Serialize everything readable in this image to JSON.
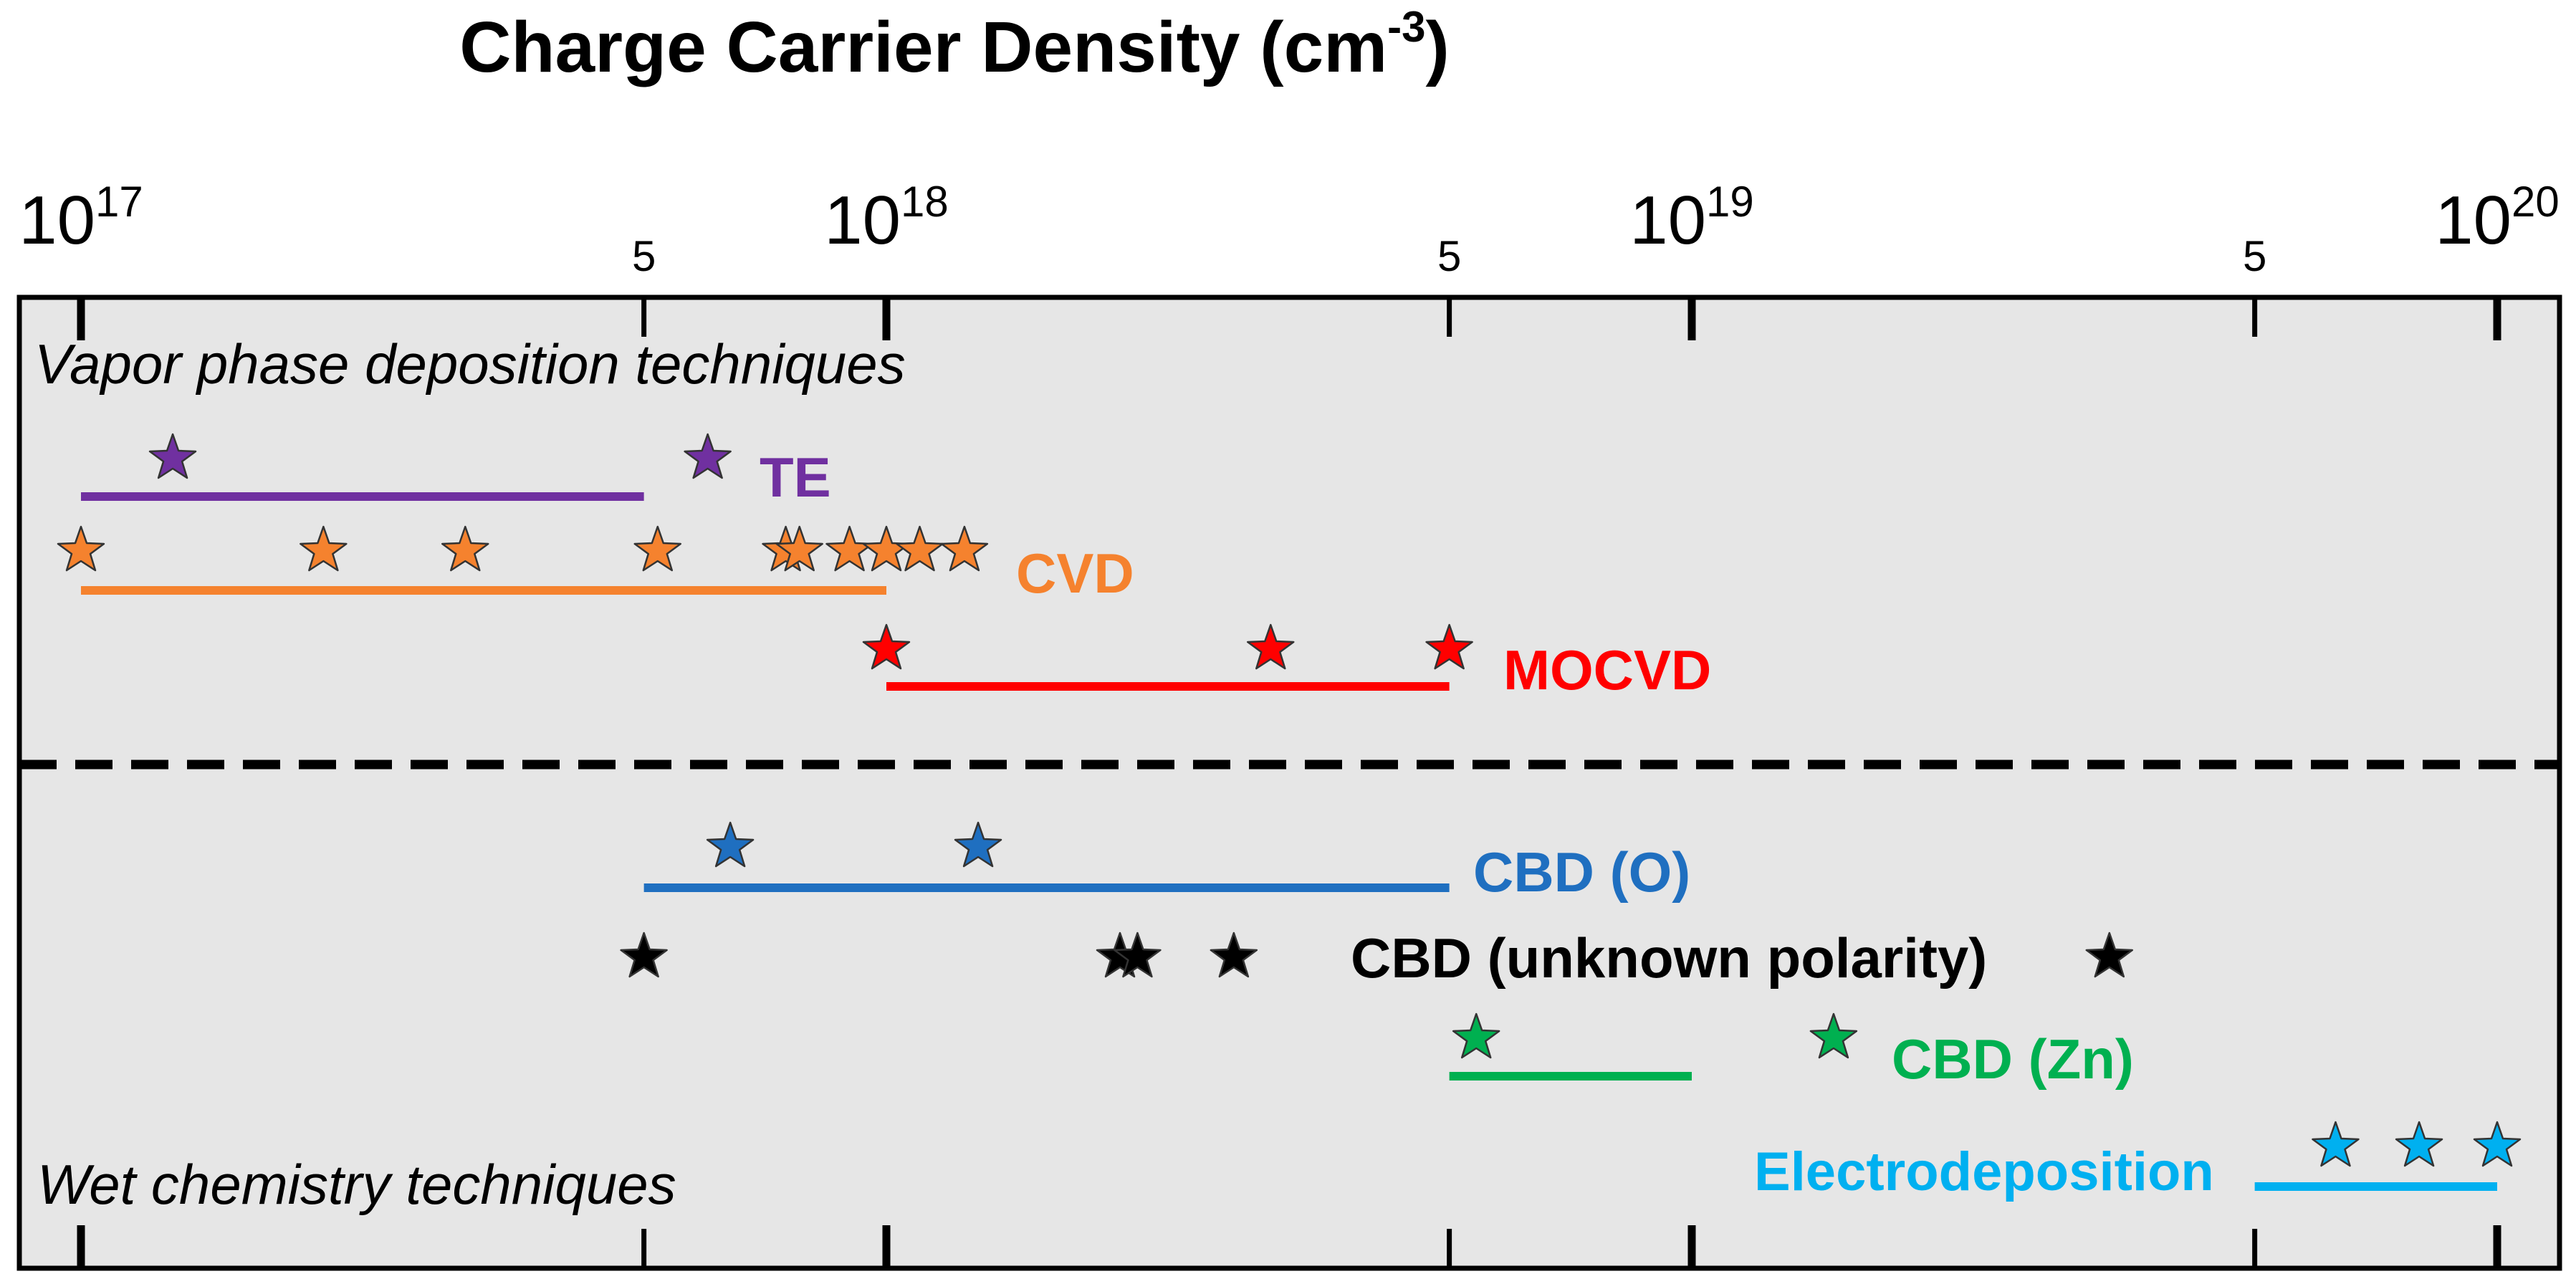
{
  "chart_data": {
    "type": "scatter",
    "title": "Charge Carrier Density (cm",
    "title_sup": "-3",
    "title_close": ")",
    "xscale": "log",
    "xlim": [
      1e+17,
      1e+20
    ],
    "major_ticks": [
      {
        "value": 1e+17,
        "base": "10",
        "exp": "17"
      },
      {
        "value": 1e+18,
        "base": "10",
        "exp": "18"
      },
      {
        "value": 1e+19,
        "base": "10",
        "exp": "19"
      },
      {
        "value": 1e+20,
        "base": "10",
        "exp": "20"
      }
    ],
    "minor_ticks": [
      {
        "value": 5e+17,
        "label": "5"
      },
      {
        "value": 5e+18,
        "label": "5"
      },
      {
        "value": 5e+19,
        "label": "5"
      }
    ],
    "group_labels": {
      "vapor": "Vapor phase deposition techniques",
      "wet": "Wet chemistry techniques"
    },
    "series": [
      {
        "name": "TE",
        "group": "vapor",
        "color": "#7030A0",
        "range": [
          1e+17,
          5e+17
        ],
        "stars": [
          1.3e+17,
          6e+17
        ]
      },
      {
        "name": "CVD",
        "group": "vapor",
        "color": "#F5822E",
        "range": [
          1e+17,
          1e+18
        ],
        "stars": [
          1e+17,
          2e+17,
          3e+17,
          5.2e+17,
          7.5e+17,
          7.8e+17,
          9e+17,
          1e+18,
          1.1e+18,
          1.25e+18
        ]
      },
      {
        "name": "MOCVD",
        "group": "vapor",
        "color": "#FF0000",
        "range": [
          1e+18,
          5e+18
        ],
        "stars": [
          1e+18,
          3e+18,
          5e+18
        ]
      },
      {
        "name": "CBD (O)",
        "group": "wet",
        "color": "#1F6FC0",
        "range": [
          5e+17,
          5e+18
        ],
        "stars": [
          6.4e+17,
          1.3e+18
        ]
      },
      {
        "name": "CBD (unknown polarity)",
        "group": "wet",
        "color": "#000000",
        "range": null,
        "stars": [
          5e+17,
          1.95e+18,
          2.05e+18,
          2.7e+18,
          3.3e+19
        ]
      },
      {
        "name": "CBD (Zn)",
        "group": "wet",
        "color": "#00B050",
        "range": [
          5e+18,
          1e+19
        ],
        "stars": [
          5.4e+18,
          1.5e+19
        ]
      },
      {
        "name": "Electrodeposition",
        "group": "wet",
        "color": "#00B0F0",
        "range": [
          5e+19,
          1e+20
        ],
        "stars": [
          6.3e+19,
          8e+19,
          1e+20
        ]
      }
    ]
  }
}
